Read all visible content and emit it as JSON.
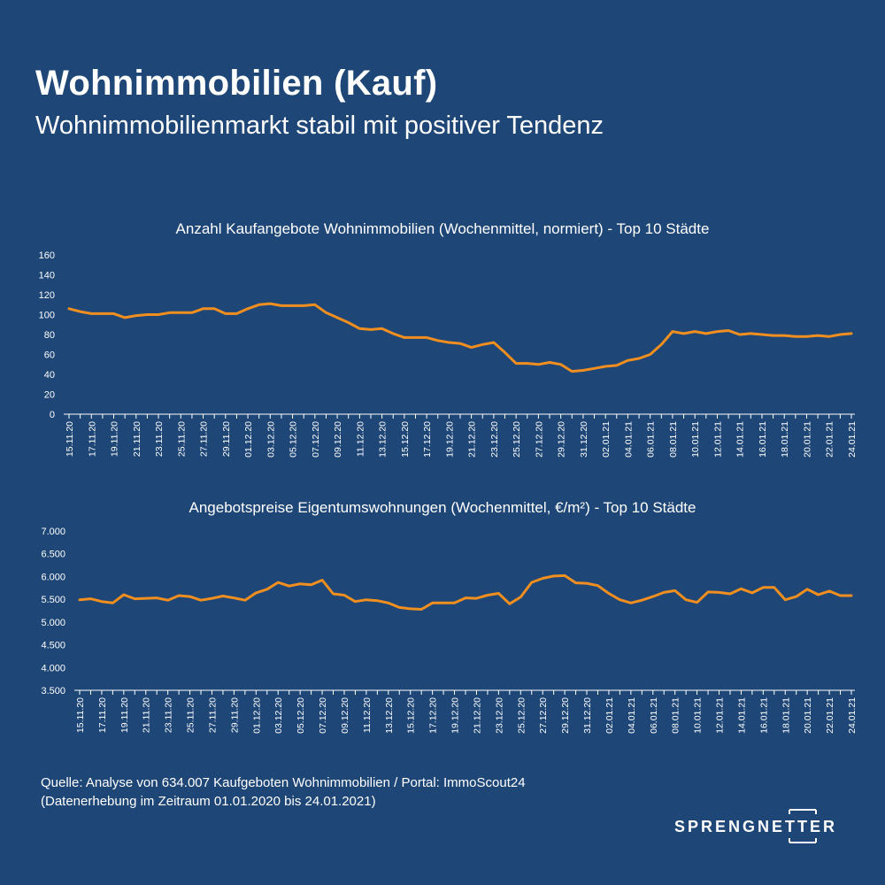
{
  "header": {
    "title": "Wohnimmobilien (Kauf)",
    "subtitle": "Wohnimmobilienmarkt stabil mit positiver Tendenz"
  },
  "colors": {
    "background": "#1e4677",
    "line": "#f08f1f",
    "text": "#ffffff"
  },
  "chart_data": [
    {
      "type": "line",
      "title": "Anzahl Kaufangebote Wohnimmobilien (Wochenmittel, normiert) - Top 10 Städte",
      "xlabel": "",
      "ylabel": "",
      "ylim": [
        0,
        160
      ],
      "yticks": [
        "0",
        "20",
        "40",
        "60",
        "80",
        "100",
        "120",
        "140",
        "160"
      ],
      "ytick_values": [
        0,
        20,
        40,
        60,
        80,
        100,
        120,
        140,
        160
      ],
      "xtick_labels": [
        "15.11.20",
        "17.11.20",
        "19.11.20",
        "21.11.20",
        "23.11.20",
        "25.11.20",
        "27.11.20",
        "29.11.20",
        "01.12.20",
        "03.12.20",
        "05.12.20",
        "07.12.20",
        "09.12.20",
        "11.12.20",
        "13.12.20",
        "15.12.20",
        "17.12.20",
        "19.12.20",
        "21.12.20",
        "23.12.20",
        "25.12.20",
        "27.12.20",
        "29.12.20",
        "31.12.20",
        "02.01.21",
        "04.01.21",
        "06.01.21",
        "08.01.21",
        "10.01.21",
        "12.01.21",
        "14.01.21",
        "16.01.21",
        "18.01.21",
        "20.01.21",
        "22.01.21",
        "24.01.21"
      ],
      "values": [
        106,
        103,
        101,
        101,
        101,
        97,
        99,
        100,
        100,
        102,
        102,
        102,
        106,
        106,
        101,
        101,
        106,
        110,
        111,
        109,
        109,
        109,
        110,
        102,
        97,
        92,
        86,
        85,
        86,
        81,
        77,
        77,
        77,
        74,
        72,
        71,
        67,
        70,
        72,
        62,
        51,
        51,
        50,
        52,
        50,
        43,
        44,
        46,
        48,
        49,
        54,
        56,
        60,
        70,
        83,
        81,
        83,
        81,
        83,
        84,
        80,
        81,
        80,
        79,
        79,
        78,
        78,
        79,
        78,
        80,
        81
      ],
      "grid": false,
      "legend": "none"
    },
    {
      "type": "line",
      "title": "Angebotspreise Eigentumswohnungen (Wochenmittel, €/m²) - Top 10 Städte",
      "xlabel": "",
      "ylabel": "",
      "ylim": [
        3500,
        7000
      ],
      "yticks": [
        "3.500",
        "4.000",
        "4.500",
        "5.000",
        "5.500",
        "6.000",
        "6.500",
        "7.000"
      ],
      "ytick_values": [
        3500,
        4000,
        4500,
        5000,
        5500,
        6000,
        6500,
        7000
      ],
      "xtick_labels": [
        "15.11.20",
        "17.11.20",
        "19.11.20",
        "21.11.20",
        "23.11.20",
        "25.11.20",
        "27.11.20",
        "29.11.20",
        "01.12.20",
        "03.12.20",
        "05.12.20",
        "07.12.20",
        "09.12.20",
        "11.12.20",
        "13.12.20",
        "15.12.20",
        "17.12.20",
        "19.12.20",
        "21.12.20",
        "23.12.20",
        "25.12.20",
        "27.12.20",
        "29.12.20",
        "31.12.20",
        "02.01.21",
        "04.01.21",
        "06.01.21",
        "08.01.21",
        "10.01.21",
        "12.01.21",
        "14.01.21",
        "16.01.21",
        "18.01.21",
        "20.01.21",
        "22.01.21",
        "24.01.21"
      ],
      "values": [
        5490,
        5510,
        5450,
        5420,
        5600,
        5510,
        5520,
        5530,
        5480,
        5580,
        5560,
        5480,
        5520,
        5570,
        5530,
        5480,
        5640,
        5720,
        5870,
        5790,
        5840,
        5820,
        5920,
        5620,
        5590,
        5450,
        5490,
        5470,
        5420,
        5320,
        5290,
        5280,
        5420,
        5420,
        5420,
        5530,
        5520,
        5590,
        5630,
        5400,
        5550,
        5870,
        5960,
        6010,
        6020,
        5860,
        5850,
        5800,
        5630,
        5490,
        5420,
        5480,
        5560,
        5650,
        5690,
        5490,
        5430,
        5660,
        5650,
        5620,
        5730,
        5640,
        5760,
        5760,
        5490,
        5560,
        5720,
        5600,
        5680,
        5580,
        5580
      ],
      "grid": false,
      "legend": "none"
    }
  ],
  "footer": {
    "source_line1": "Quelle: Analyse von 634.007 Kaufgeboten Wohnimmobilien / Portal: ImmoScout24",
    "source_line2": "(Datenerhebung im Zeitraum 01.01.2020 bis 24.01.2021)",
    "logo_text": "SPRENGNETTER"
  }
}
